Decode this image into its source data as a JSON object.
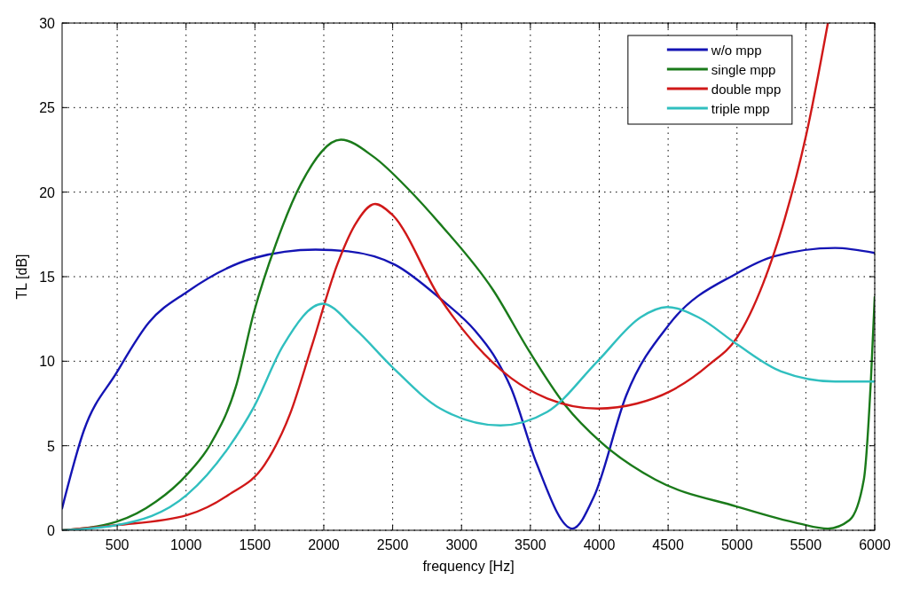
{
  "chart_data": {
    "type": "line",
    "xlabel": "frequency [Hz]",
    "ylabel": "TL [dB]",
    "xlim": [
      100,
      6000
    ],
    "xticks": [
      500,
      1000,
      1500,
      2000,
      2500,
      3000,
      3500,
      4000,
      4500,
      5000,
      5500,
      6000
    ],
    "ylim": [
      0,
      30
    ],
    "yticks": [
      0,
      5,
      10,
      15,
      20,
      25,
      30
    ],
    "grid": true,
    "legend": "top right",
    "line_style": "solid",
    "series": [
      {
        "name": "w/o mpp",
        "color": "#1414b4",
        "x": [
          100,
          258,
          494,
          731,
          1007,
          1493,
          1940,
          2176,
          2518,
          2846,
          3099,
          3230,
          3360,
          3543,
          3805,
          3962,
          4197,
          4510,
          5000,
          5268,
          5712,
          6000
        ],
        "values": [
          1.3,
          5.9,
          9.3,
          12.3,
          14.1,
          16.1,
          16.6,
          16.5,
          15.7,
          13.7,
          11.8,
          10.4,
          8.4,
          4.0,
          0.1,
          2.0,
          8.0,
          12.2,
          15.2,
          16.2,
          16.7,
          16.4
        ]
      },
      {
        "name": "single mpp",
        "color": "#1a7a1a",
        "x": [
          100,
          494,
          783,
          1007,
          1178,
          1362,
          1493,
          1651,
          1835,
          2124,
          2360,
          2623,
          2846,
          3230,
          3491,
          3753,
          4014,
          4406,
          5000,
          5451,
          5660,
          5817,
          5921,
          5973,
          6000
        ],
        "values": [
          0,
          0.5,
          1.7,
          3.3,
          5.1,
          8.5,
          12.9,
          16.9,
          20.5,
          23.1,
          22.1,
          20.1,
          18.1,
          14.2,
          10.6,
          7.4,
          5.2,
          3.0,
          1.4,
          0.4,
          0.1,
          0.6,
          3.0,
          9.0,
          13.8
        ]
      },
      {
        "name": "double mpp",
        "color": "#d01818",
        "x": [
          100,
          494,
          1007,
          1309,
          1572,
          1756,
          1913,
          2097,
          2229,
          2373,
          2492,
          2846,
          3099,
          3360,
          3622,
          3988,
          4275,
          4510,
          4798,
          5000,
          5190,
          5346,
          5503,
          5660
        ],
        "values": [
          0,
          0.3,
          0.9,
          2.1,
          3.9,
          6.9,
          10.9,
          15.7,
          18.1,
          19.3,
          18.7,
          13.7,
          11.0,
          9.0,
          7.8,
          7.2,
          7.5,
          8.2,
          9.8,
          11.4,
          14.6,
          18.4,
          23.4,
          30
        ]
      },
      {
        "name": "triple mpp",
        "color": "#30bfbf",
        "x": [
          100,
          494,
          1007,
          1309,
          1493,
          1703,
          1992,
          2229,
          2492,
          2846,
          3282,
          3622,
          3988,
          4301,
          4492,
          4719,
          5000,
          5320,
          5712,
          6000
        ],
        "values": [
          0,
          0.3,
          2.1,
          4.9,
          7.3,
          10.9,
          13.4,
          11.9,
          9.7,
          7.2,
          6.2,
          7.0,
          10.0,
          12.6,
          13.2,
          12.6,
          11.0,
          9.4,
          8.8,
          8.8
        ]
      }
    ]
  }
}
